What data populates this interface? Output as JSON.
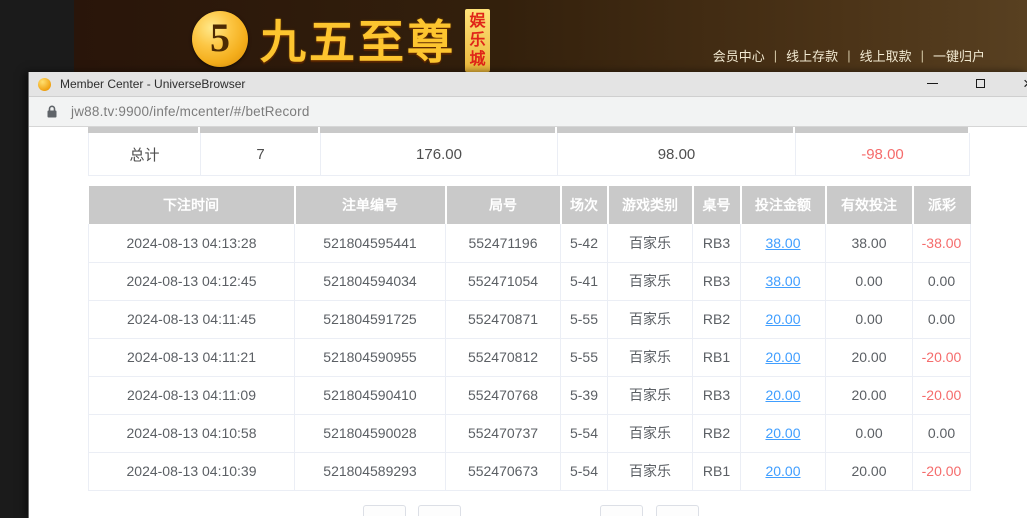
{
  "banner": {
    "logo_glyph": "5",
    "logo_text": "九五至尊",
    "logo_badge_chars": [
      "娱",
      "乐",
      "城"
    ],
    "nav_links": [
      "会员中心",
      "线上存款",
      "线上取款",
      "一键归户"
    ],
    "nav_separator": "|"
  },
  "browser": {
    "title": "Member Center - UniverseBrowser",
    "url": "jw88.tv:9900/infe/mcenter/#/betRecord",
    "close_glyph": "×"
  },
  "summary": {
    "label": "总计",
    "count": "7",
    "bet_amount": "176.00",
    "valid_bet": "98.00",
    "payout": "-98.00"
  },
  "bet_table": {
    "headers": [
      "下注时间",
      "注单编号",
      "局号",
      "场次",
      "游戏类别",
      "桌号",
      "投注金额",
      "有效投注",
      "派彩"
    ],
    "rows": [
      [
        "2024-08-13 04:13:28",
        "521804595441",
        "552471196",
        "5-42",
        "百家乐",
        "RB3",
        "38.00",
        "38.00",
        "-38.00"
      ],
      [
        "2024-08-13 04:12:45",
        "521804594034",
        "552471054",
        "5-41",
        "百家乐",
        "RB3",
        "38.00",
        "0.00",
        "0.00"
      ],
      [
        "2024-08-13 04:11:45",
        "521804591725",
        "552470871",
        "5-55",
        "百家乐",
        "RB2",
        "20.00",
        "0.00",
        "0.00"
      ],
      [
        "2024-08-13 04:11:21",
        "521804590955",
        "552470812",
        "5-55",
        "百家乐",
        "RB1",
        "20.00",
        "20.00",
        "-20.00"
      ],
      [
        "2024-08-13 04:11:09",
        "521804590410",
        "552470768",
        "5-39",
        "百家乐",
        "RB3",
        "20.00",
        "20.00",
        "-20.00"
      ],
      [
        "2024-08-13 04:10:58",
        "521804590028",
        "552470737",
        "5-54",
        "百家乐",
        "RB2",
        "20.00",
        "0.00",
        "0.00"
      ],
      [
        "2024-08-13 04:10:39",
        "521804589293",
        "552470673",
        "5-54",
        "百家乐",
        "RB1",
        "20.00",
        "20.00",
        "-20.00"
      ]
    ]
  },
  "pagination": {
    "visible_button_count": 4
  },
  "colors": {
    "negative_red": "#f56c6c",
    "link_blue": "#409eff",
    "table_header_gray": "#c9c9c9",
    "banner_gold": "#fdc52f"
  }
}
